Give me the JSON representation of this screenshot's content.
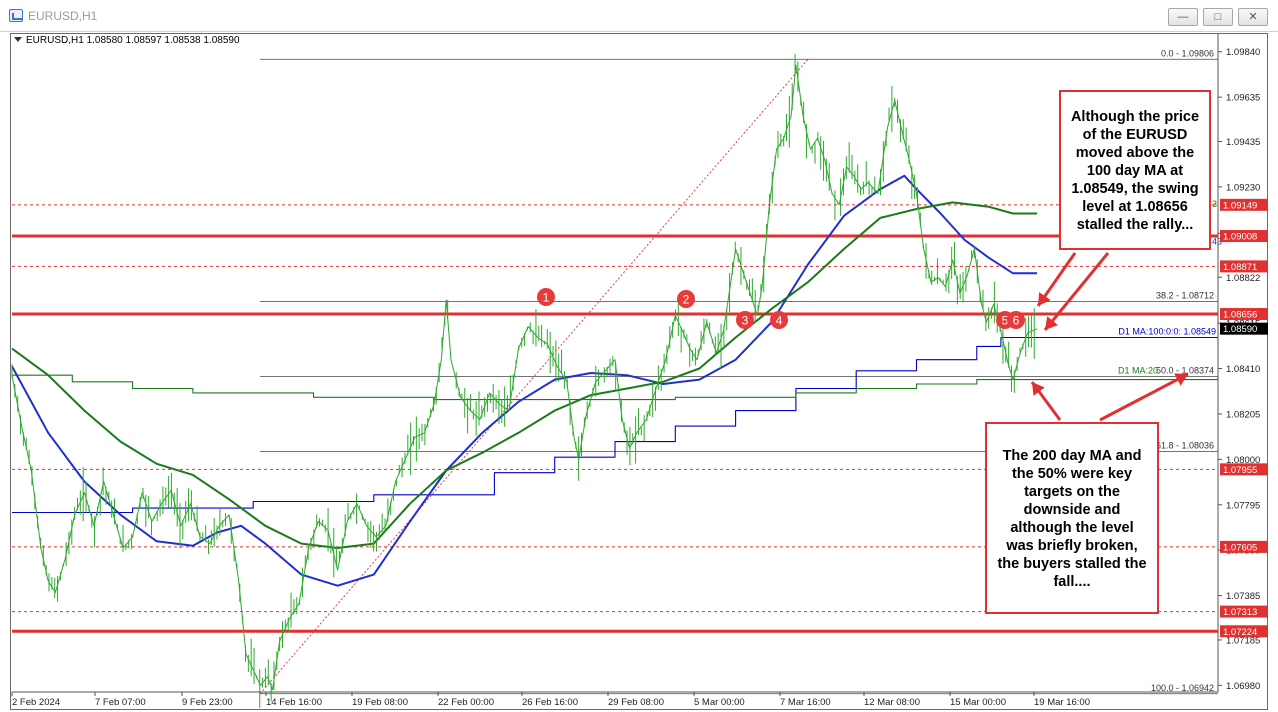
{
  "window": {
    "title": "EURUSD,H1"
  },
  "header": {
    "symbol": "EURUSD,H1",
    "ohlc": "1.08580 1.08597 1.08538 1.08590"
  },
  "annotations": {
    "upper_text": "Although the price of the EURUSD moved above the 100 day MA at 1.08549, the swing level at 1.08656 stalled the rally...",
    "lower_text": "The 200 day MA and the 50% were key targets on the downside and although the level was briefly broken, the buyers stalled the fall...."
  },
  "chart_data": {
    "type": "line",
    "series_name": "EURUSD,H1",
    "y_axis_ticks": [
      "1.09840",
      "1.09635",
      "1.09435",
      "1.09230",
      "1.09020",
      "1.08822",
      "1.08615",
      "1.08410",
      "1.08205",
      "1.08000",
      "1.07795",
      "1.07590",
      "1.07385",
      "1.07185",
      "1.06980"
    ],
    "x_axis_ticks": [
      "2 Feb 2024",
      "7 Feb 07:00",
      "9 Feb 23:00",
      "14 Feb 16:00",
      "19 Feb 08:00",
      "22 Feb 00:00",
      "26 Feb 16:00",
      "29 Feb 08:00",
      "5 Mar 00:00",
      "7 Mar 16:00",
      "12 Mar 08:00",
      "15 Mar 00:00",
      "19 Mar 16:00"
    ],
    "ylim": [
      1.0695,
      1.0992
    ],
    "price_tags": [
      {
        "label": "1.09149",
        "value": 1.09149,
        "color": "#e03030"
      },
      {
        "label": "1.09008",
        "value": 1.09008,
        "color": "#e03030"
      },
      {
        "label": "1.08871",
        "value": 1.08871,
        "color": "#e03030"
      },
      {
        "label": "1.08656",
        "value": 1.08656,
        "color": "#e03030"
      },
      {
        "label": "1.08590",
        "value": 1.0859,
        "color": "#000000"
      },
      {
        "label": "1.07955",
        "value": 1.07955,
        "color": "#e03030"
      },
      {
        "label": "1.07605",
        "value": 1.07605,
        "color": "#e03030"
      },
      {
        "label": "1.07313",
        "value": 1.07313,
        "color": "#e03030"
      },
      {
        "label": "1.07224",
        "value": 1.07224,
        "color": "#e03030"
      }
    ],
    "horizontal_levels": [
      {
        "value": 1.09008,
        "style": "thick"
      },
      {
        "value": 1.08656,
        "style": "thick"
      },
      {
        "value": 1.07224,
        "style": "thick"
      },
      {
        "value": 1.09149,
        "style": "dashed"
      },
      {
        "value": 1.08871,
        "style": "dashed"
      },
      {
        "value": 1.07955,
        "style": "dashed"
      },
      {
        "value": 1.07605,
        "style": "dashed"
      },
      {
        "value": 1.07313,
        "style": "dashed"
      }
    ],
    "fibonacci": [
      {
        "label": "0.0 - 1.09806",
        "value": 1.09806
      },
      {
        "label": "38.2 - 1.08712",
        "value": 1.08712
      },
      {
        "label": "50.0 - 1.08374",
        "value": 1.08374
      },
      {
        "label": "61.8 - 1.08036",
        "value": 1.08036
      },
      {
        "label": "100.0 - 1.06942",
        "value": 1.06942
      }
    ],
    "ma_labels": [
      {
        "label": "D1 MA:100:0:0: 1.08549",
        "value": 1.08549,
        "color": "#0000cc"
      },
      {
        "label": "D1 MA:20",
        "value": 1.08374,
        "color": "#1a7a1a"
      }
    ],
    "edge_glyphs": [
      "43",
      "3"
    ],
    "markers": [
      "1",
      "2",
      "3",
      "4",
      "5",
      "6"
    ],
    "price_path": [
      [
        0,
        1.0838
      ],
      [
        0.008,
        1.0815
      ],
      [
        0.016,
        1.0795
      ],
      [
        0.024,
        1.076
      ],
      [
        0.03,
        1.0745
      ],
      [
        0.036,
        1.074
      ],
      [
        0.044,
        1.0755
      ],
      [
        0.052,
        1.0775
      ],
      [
        0.06,
        1.0785
      ],
      [
        0.068,
        1.077
      ],
      [
        0.076,
        1.079
      ],
      [
        0.084,
        1.0775
      ],
      [
        0.092,
        1.076
      ],
      [
        0.1,
        1.0765
      ],
      [
        0.108,
        1.0785
      ],
      [
        0.116,
        1.0772
      ],
      [
        0.124,
        1.078
      ],
      [
        0.132,
        1.0786
      ],
      [
        0.14,
        1.077
      ],
      [
        0.148,
        1.078
      ],
      [
        0.156,
        1.0765
      ],
      [
        0.164,
        1.0762
      ],
      [
        0.172,
        1.077
      ],
      [
        0.18,
        1.0775
      ],
      [
        0.188,
        1.0745
      ],
      [
        0.194,
        1.0712
      ],
      [
        0.2,
        1.0705
      ],
      [
        0.206,
        1.0698
      ],
      [
        0.212,
        1.0702
      ],
      [
        0.216,
        1.0696
      ],
      [
        0.222,
        1.0718
      ],
      [
        0.23,
        1.0728
      ],
      [
        0.238,
        1.0735
      ],
      [
        0.246,
        1.076
      ],
      [
        0.254,
        1.0772
      ],
      [
        0.262,
        1.0768
      ],
      [
        0.27,
        1.075
      ],
      [
        0.278,
        1.0772
      ],
      [
        0.286,
        1.078
      ],
      [
        0.294,
        1.077
      ],
      [
        0.302,
        1.0765
      ],
      [
        0.31,
        1.077
      ],
      [
        0.318,
        1.079
      ],
      [
        0.326,
        1.08
      ],
      [
        0.334,
        1.081
      ],
      [
        0.342,
        1.0812
      ],
      [
        0.35,
        1.0825
      ],
      [
        0.356,
        1.0845
      ],
      [
        0.36,
        1.0872
      ],
      [
        0.364,
        1.0845
      ],
      [
        0.372,
        1.0828
      ],
      [
        0.38,
        1.0822
      ],
      [
        0.388,
        1.0818
      ],
      [
        0.396,
        1.083
      ],
      [
        0.404,
        1.0825
      ],
      [
        0.412,
        1.0822
      ],
      [
        0.42,
        1.085
      ],
      [
        0.428,
        1.086
      ],
      [
        0.436,
        1.0855
      ],
      [
        0.444,
        1.0852
      ],
      [
        0.452,
        1.0842
      ],
      [
        0.46,
        1.0835
      ],
      [
        0.466,
        1.081
      ],
      [
        0.47,
        1.08
      ],
      [
        0.476,
        1.082
      ],
      [
        0.484,
        1.0835
      ],
      [
        0.492,
        1.084
      ],
      [
        0.5,
        1.0845
      ],
      [
        0.506,
        1.0818
      ],
      [
        0.512,
        1.0805
      ],
      [
        0.518,
        1.0812
      ],
      [
        0.526,
        1.0818
      ],
      [
        0.534,
        1.0832
      ],
      [
        0.542,
        1.0845
      ],
      [
        0.55,
        1.0865
      ],
      [
        0.556,
        1.0858
      ],
      [
        0.562,
        1.085
      ],
      [
        0.568,
        1.0845
      ],
      [
        0.576,
        1.0862
      ],
      [
        0.584,
        1.0848
      ],
      [
        0.59,
        1.0858
      ],
      [
        0.596,
        1.088
      ],
      [
        0.6,
        1.0895
      ],
      [
        0.606,
        1.0885
      ],
      [
        0.612,
        1.0875
      ],
      [
        0.618,
        1.0865
      ],
      [
        0.622,
        1.0878
      ],
      [
        0.628,
        1.0915
      ],
      [
        0.634,
        1.094
      ],
      [
        0.64,
        1.0945
      ],
      [
        0.646,
        1.0955
      ],
      [
        0.65,
        1.0978
      ],
      [
        0.656,
        1.0955
      ],
      [
        0.662,
        1.094
      ],
      [
        0.668,
        1.0945
      ],
      [
        0.674,
        1.0935
      ],
      [
        0.68,
        1.092
      ],
      [
        0.686,
        1.0915
      ],
      [
        0.692,
        1.0932
      ],
      [
        0.698,
        1.0928
      ],
      [
        0.704,
        1.0922
      ],
      [
        0.71,
        1.0925
      ],
      [
        0.718,
        1.092
      ],
      [
        0.726,
        1.095
      ],
      [
        0.732,
        1.0962
      ],
      [
        0.738,
        1.0948
      ],
      [
        0.744,
        1.0935
      ],
      [
        0.75,
        1.092
      ],
      [
        0.756,
        1.0895
      ],
      [
        0.762,
        1.088
      ],
      [
        0.768,
        1.0882
      ],
      [
        0.774,
        1.0878
      ],
      [
        0.78,
        1.089
      ],
      [
        0.786,
        1.0875
      ],
      [
        0.792,
        1.0883
      ],
      [
        0.798,
        1.0895
      ],
      [
        0.804,
        1.087
      ],
      [
        0.808,
        1.0862
      ],
      [
        0.814,
        1.087
      ],
      [
        0.82,
        1.0858
      ],
      [
        0.826,
        1.0843
      ],
      [
        0.83,
        1.0836
      ],
      [
        0.836,
        1.0848
      ],
      [
        0.842,
        1.0857
      ],
      [
        0.846,
        1.0858
      ],
      [
        0.85,
        1.0859
      ]
    ],
    "ma100_path": [
      [
        0,
        1.0842
      ],
      [
        0.03,
        1.0812
      ],
      [
        0.06,
        1.079
      ],
      [
        0.09,
        1.0775
      ],
      [
        0.12,
        1.0763
      ],
      [
        0.15,
        1.0761
      ],
      [
        0.17,
        1.0767
      ],
      [
        0.19,
        1.077
      ],
      [
        0.21,
        1.0762
      ],
      [
        0.24,
        1.0748
      ],
      [
        0.27,
        1.0743
      ],
      [
        0.3,
        1.0748
      ],
      [
        0.33,
        1.0772
      ],
      [
        0.36,
        1.0795
      ],
      [
        0.39,
        1.0812
      ],
      [
        0.42,
        1.0826
      ],
      [
        0.45,
        1.0836
      ],
      [
        0.48,
        1.0839
      ],
      [
        0.51,
        1.0838
      ],
      [
        0.54,
        1.0834
      ],
      [
        0.57,
        1.0836
      ],
      [
        0.6,
        1.0845
      ],
      [
        0.63,
        1.0862
      ],
      [
        0.66,
        1.0888
      ],
      [
        0.69,
        1.091
      ],
      [
        0.72,
        1.0922
      ],
      [
        0.74,
        1.0928
      ],
      [
        0.75,
        1.0922
      ],
      [
        0.77,
        1.0911
      ],
      [
        0.79,
        1.0899
      ],
      [
        0.81,
        1.0891
      ],
      [
        0.83,
        1.0884
      ],
      [
        0.85,
        1.0884
      ]
    ],
    "ma200_path": [
      [
        0,
        1.085
      ],
      [
        0.03,
        1.0838
      ],
      [
        0.06,
        1.0822
      ],
      [
        0.09,
        1.0808
      ],
      [
        0.12,
        1.0798
      ],
      [
        0.15,
        1.0793
      ],
      [
        0.18,
        1.0782
      ],
      [
        0.21,
        1.077
      ],
      [
        0.24,
        1.0762
      ],
      [
        0.27,
        1.076
      ],
      [
        0.3,
        1.0762
      ],
      [
        0.33,
        1.078
      ],
      [
        0.36,
        1.0795
      ],
      [
        0.39,
        1.0803
      ],
      [
        0.42,
        1.0812
      ],
      [
        0.45,
        1.0822
      ],
      [
        0.48,
        1.0829
      ],
      [
        0.51,
        1.0832
      ],
      [
        0.54,
        1.0835
      ],
      [
        0.57,
        1.0841
      ],
      [
        0.6,
        1.0855
      ],
      [
        0.63,
        1.0868
      ],
      [
        0.66,
        1.088
      ],
      [
        0.69,
        1.0895
      ],
      [
        0.72,
        1.0909
      ],
      [
        0.75,
        1.0913
      ],
      [
        0.78,
        1.0916
      ],
      [
        0.81,
        1.0914
      ],
      [
        0.83,
        1.0911
      ],
      [
        0.85,
        1.0911
      ]
    ],
    "ma_step_paths": [
      {
        "color": "#0000cc",
        "points": [
          [
            0,
            1.0776
          ],
          [
            0.1,
            1.0778
          ],
          [
            0.2,
            1.0781
          ],
          [
            0.3,
            1.0784
          ],
          [
            0.4,
            1.0794
          ],
          [
            0.45,
            1.0801
          ],
          [
            0.5,
            1.0808
          ],
          [
            0.55,
            1.0815
          ],
          [
            0.6,
            1.0822
          ],
          [
            0.65,
            1.0832
          ],
          [
            0.7,
            1.084
          ],
          [
            0.75,
            1.0845
          ],
          [
            0.8,
            1.0851
          ],
          [
            0.82,
            1.0855
          ],
          [
            1.0,
            1.0855
          ]
        ]
      },
      {
        "color": "#1a7a1a",
        "points": [
          [
            0,
            1.0838
          ],
          [
            0.05,
            1.0835
          ],
          [
            0.1,
            1.0832
          ],
          [
            0.15,
            1.083
          ],
          [
            0.25,
            1.0828
          ],
          [
            0.35,
            1.0827
          ],
          [
            0.45,
            1.0827
          ],
          [
            0.55,
            1.0828
          ],
          [
            0.65,
            1.083
          ],
          [
            0.7,
            1.0832
          ],
          [
            0.75,
            1.0834
          ],
          [
            0.8,
            1.0836
          ],
          [
            1.0,
            1.0837
          ]
        ]
      }
    ]
  }
}
